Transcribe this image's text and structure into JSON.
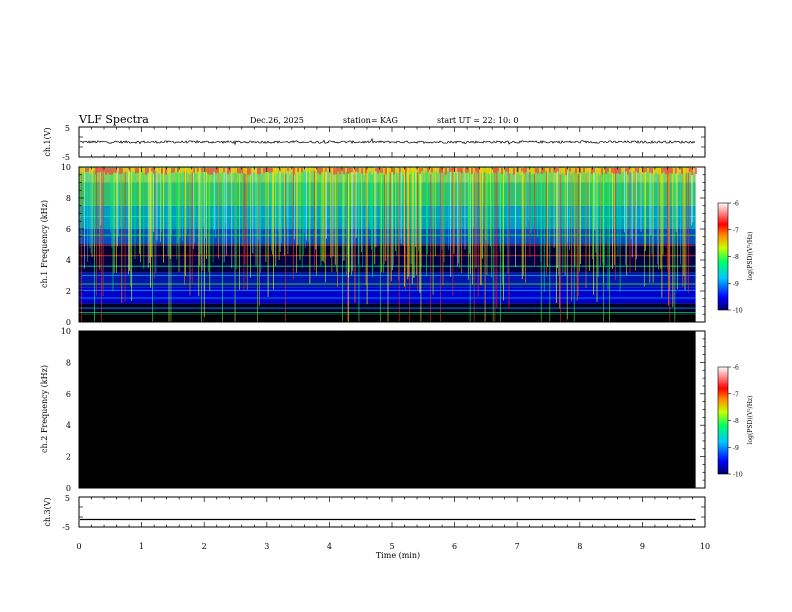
{
  "header": {
    "title": "VLF Spectra",
    "date": "Dec.26, 2025",
    "station": "station= KAG",
    "start_ut": "start  UT =   22: 10: 0"
  },
  "chart_data": [
    {
      "id": "ch1-waveform",
      "type": "line",
      "ylabel": "ch.1(V)",
      "ylim": [
        -5,
        5
      ],
      "yticks": [
        "5",
        "-5"
      ],
      "xlim": [
        0,
        10
      ],
      "baseline_v": 0,
      "noise_amplitude_v": 0.4,
      "end_time_min": 9.85
    },
    {
      "id": "ch1-spectrogram",
      "type": "heatmap",
      "ylabel": "ch.1 Frequency (kHz)",
      "ylim": [
        0,
        10
      ],
      "yticks": [
        "0",
        "2",
        "4",
        "6",
        "8",
        "10"
      ],
      "xlim": [
        0,
        10
      ],
      "end_time_min": 9.85,
      "colorbar": {
        "label": "log(PSD)(V²/Hz)",
        "range": [
          -10,
          -6
        ],
        "ticks": [
          "-6",
          "-7",
          "-8",
          "-9",
          "-10"
        ]
      }
    },
    {
      "id": "ch2-spectrogram",
      "type": "heatmap",
      "ylabel": "ch.2 Frequency (kHz)",
      "ylim": [
        0,
        10
      ],
      "yticks": [
        "0",
        "2",
        "4",
        "6",
        "8",
        "10"
      ],
      "xlim": [
        0,
        10
      ],
      "end_time_min": 9.85,
      "fill": "#000000",
      "colorbar": {
        "label": "log(PSD)(V²/Hz)",
        "range": [
          -10,
          -6
        ],
        "ticks": [
          "-6",
          "-7",
          "-8",
          "-9",
          "-10"
        ]
      }
    },
    {
      "id": "ch3-waveform",
      "type": "line",
      "ylabel": "ch.3(V)",
      "ylim": [
        -5,
        5
      ],
      "yticks": [
        "5",
        "-5"
      ],
      "xlim": [
        0,
        10
      ],
      "baseline_v": -2.5,
      "end_time_min": 9.85
    }
  ],
  "xaxis": {
    "label": "Time (min)",
    "ticks": [
      "0",
      "1",
      "2",
      "3",
      "4",
      "5",
      "6",
      "7",
      "8",
      "9",
      "10"
    ]
  }
}
